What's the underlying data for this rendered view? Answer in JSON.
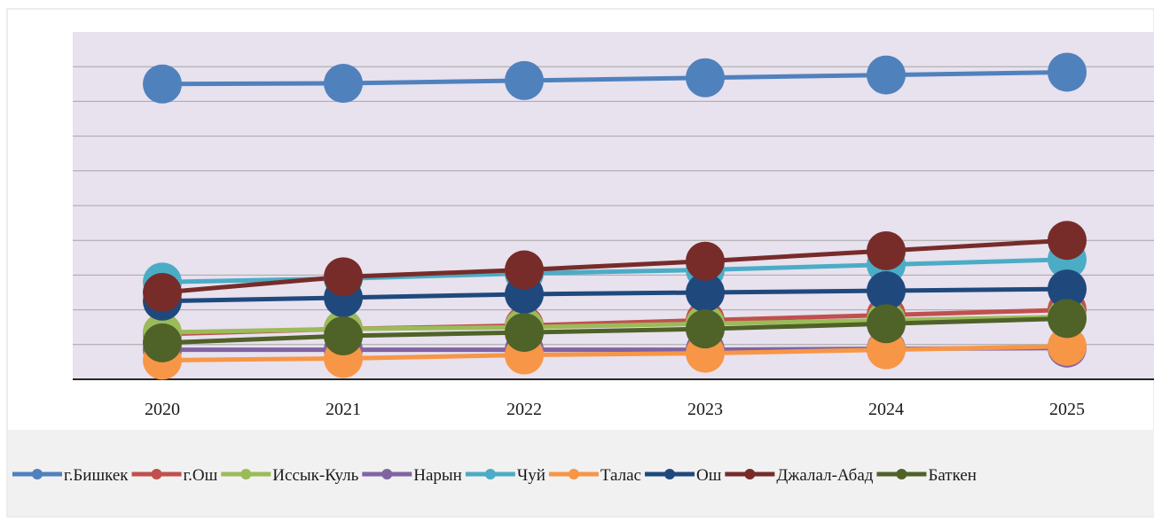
{
  "chart_data": {
    "type": "line",
    "title": "",
    "xlabel": "",
    "ylabel": "",
    "x": [
      "2020",
      "2021",
      "2022",
      "2023",
      "2024",
      "2025"
    ],
    "ylim": [
      0,
      10
    ],
    "y_gridlines": 10,
    "y_tick_labels_shown": false,
    "grid": true,
    "legend_position": "bottom",
    "plot_background": "#e8e1ee",
    "series": [
      {
        "name": "г.Бишкек",
        "color": "#4f81bd",
        "values": [
          8.5,
          8.52,
          8.6,
          8.68,
          8.76,
          8.84
        ]
      },
      {
        "name": "г.Ош",
        "color": "#c0504d",
        "values": [
          1.3,
          1.45,
          1.55,
          1.7,
          1.85,
          2.0
        ]
      },
      {
        "name": "Иссык-Куль",
        "color": "#9bbb59",
        "values": [
          1.35,
          1.45,
          1.5,
          1.6,
          1.7,
          1.8
        ]
      },
      {
        "name": "Нарын",
        "color": "#8064a2",
        "values": [
          0.85,
          0.85,
          0.85,
          0.85,
          0.88,
          0.9
        ]
      },
      {
        "name": "Чуй",
        "color": "#4bacc6",
        "values": [
          2.8,
          2.9,
          3.05,
          3.15,
          3.3,
          3.45
        ]
      },
      {
        "name": "Талас",
        "color": "#f79646",
        "values": [
          0.55,
          0.6,
          0.7,
          0.75,
          0.85,
          0.95
        ]
      },
      {
        "name": "Ош",
        "color": "#1f497d",
        "values": [
          2.25,
          2.35,
          2.45,
          2.5,
          2.55,
          2.6
        ]
      },
      {
        "name": "Джалал-Абад",
        "color": "#772c2a",
        "values": [
          2.5,
          2.95,
          3.15,
          3.4,
          3.7,
          4.0
        ]
      },
      {
        "name": "Баткен",
        "color": "#4f6228",
        "values": [
          1.05,
          1.25,
          1.35,
          1.45,
          1.6,
          1.75
        ]
      }
    ]
  }
}
